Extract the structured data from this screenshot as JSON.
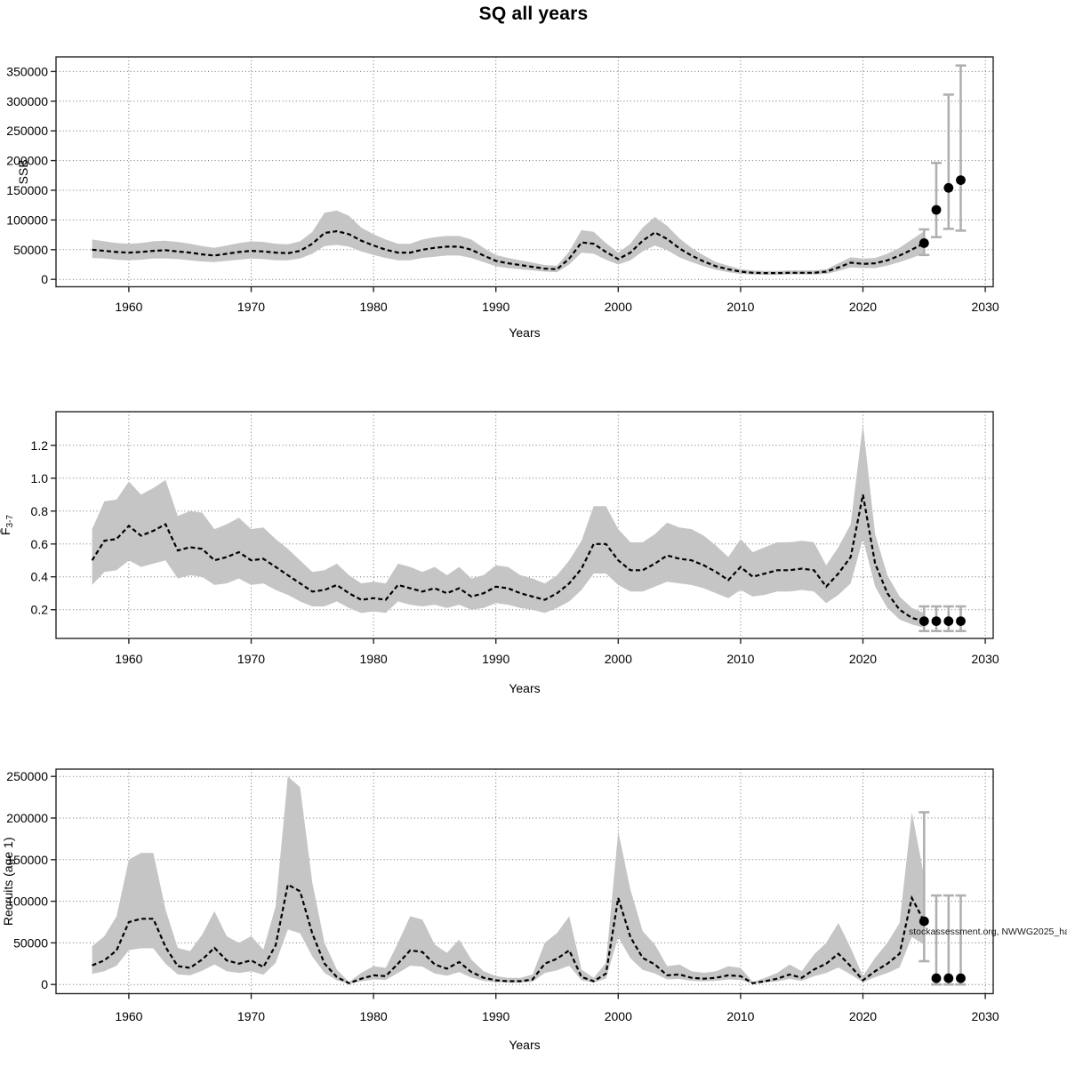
{
  "title": "SQ all years",
  "watermark": "stockassessment.org, NWWG2025_ha",
  "colors": {
    "band": "#c5c5c5",
    "line": "#000000",
    "grid": "#707070",
    "frame": "#262626",
    "error_bar": "#b0b0b0",
    "point": "#000000",
    "text": "#000000"
  },
  "chart_data": [
    {
      "type": "area",
      "name": "ssb",
      "title": "",
      "xlabel": "Years",
      "ylabel": "SSB",
      "ylabel_sub": "",
      "grid": true,
      "xlim": [
        1954.05,
        2030.65
      ],
      "ylim": [
        -12500,
        374500
      ],
      "xticks": [
        1960,
        1970,
        1980,
        1990,
        2000,
        2010,
        2020,
        2030
      ],
      "xtick_labels": [
        "1960",
        "1970",
        "1980",
        "1990",
        "2000",
        "2010",
        "2020",
        "2030"
      ],
      "yticks": [
        0,
        50000,
        100000,
        150000,
        200000,
        250000,
        300000,
        350000
      ],
      "ytick_labels": [
        "0",
        "50000",
        "100000",
        "150000",
        "200000",
        "250000",
        "300000",
        "350000"
      ],
      "x": [
        1957,
        1958,
        1959,
        1960,
        1961,
        1962,
        1963,
        1964,
        1965,
        1966,
        1967,
        1968,
        1969,
        1970,
        1971,
        1972,
        1973,
        1974,
        1975,
        1976,
        1977,
        1978,
        1979,
        1980,
        1981,
        1982,
        1983,
        1984,
        1985,
        1986,
        1987,
        1988,
        1989,
        1990,
        1991,
        1992,
        1993,
        1994,
        1995,
        1996,
        1997,
        1998,
        1999,
        2000,
        2001,
        2002,
        2003,
        2004,
        2005,
        2006,
        2007,
        2008,
        2009,
        2010,
        2011,
        2012,
        2013,
        2014,
        2015,
        2016,
        2017,
        2018,
        2019,
        2020,
        2021,
        2022,
        2023,
        2024,
        2025
      ],
      "series": [
        {
          "name": "estimate",
          "values": [
            50000,
            48000,
            46000,
            45000,
            46000,
            48000,
            49000,
            47000,
            45000,
            42000,
            40000,
            43000,
            46000,
            48000,
            47000,
            45000,
            44000,
            48000,
            60000,
            78000,
            81000,
            76000,
            65000,
            57000,
            50000,
            45000,
            45000,
            50000,
            53000,
            55000,
            55000,
            50000,
            40000,
            31000,
            27000,
            24000,
            21000,
            18000,
            17000,
            35000,
            62000,
            60000,
            46000,
            34000,
            45000,
            65000,
            79000,
            68000,
            52000,
            40000,
            30000,
            22000,
            17000,
            13000,
            11000,
            10500,
            10500,
            11000,
            11000,
            11000,
            13000,
            20000,
            28000,
            26000,
            27000,
            32000,
            40000,
            50000,
            61000
          ]
        },
        {
          "name": "lower",
          "values": [
            36000,
            35000,
            33000,
            32000,
            33000,
            35000,
            35000,
            34000,
            32000,
            30000,
            29000,
            31000,
            33000,
            35000,
            34000,
            32000,
            32000,
            35000,
            43000,
            56000,
            58000,
            55000,
            47000,
            41000,
            36000,
            32000,
            32000,
            36000,
            38000,
            40000,
            40000,
            36000,
            29000,
            22000,
            19000,
            17000,
            15000,
            13000,
            12000,
            25000,
            45000,
            43000,
            33000,
            25000,
            32000,
            47000,
            57000,
            49000,
            37000,
            29000,
            22000,
            16000,
            12000,
            9000,
            8000,
            7500,
            7500,
            8000,
            8000,
            8000,
            9000,
            14000,
            20000,
            19000,
            19000,
            23000,
            29000,
            36000,
            44000
          ]
        },
        {
          "name": "upper",
          "values": [
            67000,
            64000,
            61000,
            60000,
            61000,
            64000,
            65000,
            63000,
            60000,
            56000,
            53000,
            57000,
            61000,
            64000,
            63000,
            60000,
            59000,
            64000,
            80000,
            112000,
            116000,
            107000,
            87000,
            76000,
            67000,
            60000,
            60000,
            67000,
            71000,
            73000,
            73000,
            67000,
            53000,
            41000,
            36000,
            32000,
            28000,
            24000,
            23000,
            47000,
            83000,
            80000,
            61000,
            45000,
            60000,
            87000,
            105000,
            90000,
            69000,
            53000,
            40000,
            29000,
            23000,
            17000,
            15000,
            14000,
            14000,
            15000,
            15000,
            15000,
            17000,
            27000,
            37000,
            35000,
            36000,
            43000,
            53000,
            67000,
            81000
          ]
        }
      ],
      "forecast": {
        "x": [
          2025,
          2026,
          2027,
          2028
        ],
        "y": [
          61000,
          117000,
          154000,
          167000
        ],
        "lo": [
          41000,
          71000,
          85000,
          82000
        ],
        "hi": [
          84000,
          196000,
          311000,
          360000
        ]
      }
    },
    {
      "type": "area",
      "name": "fbar",
      "title": "",
      "xlabel": "Years",
      "ylabel": "F̄",
      "ylabel_sub": "3-7",
      "grid": true,
      "xlim": [
        1954.05,
        2030.65
      ],
      "ylim": [
        0.025,
        1.405
      ],
      "xticks": [
        1960,
        1970,
        1980,
        1990,
        2000,
        2010,
        2020,
        2030
      ],
      "xtick_labels": [
        "1960",
        "1970",
        "1980",
        "1990",
        "2000",
        "2010",
        "2020",
        "2030"
      ],
      "yticks": [
        0.2,
        0.4,
        0.6,
        0.8,
        1.0,
        1.2
      ],
      "ytick_labels": [
        "0.2",
        "0.4",
        "0.6",
        "0.8",
        "1.0",
        "1.2"
      ],
      "x": [
        1957,
        1958,
        1959,
        1960,
        1961,
        1962,
        1963,
        1964,
        1965,
        1966,
        1967,
        1968,
        1969,
        1970,
        1971,
        1972,
        1973,
        1974,
        1975,
        1976,
        1977,
        1978,
        1979,
        1980,
        1981,
        1982,
        1983,
        1984,
        1985,
        1986,
        1987,
        1988,
        1989,
        1990,
        1991,
        1992,
        1993,
        1994,
        1995,
        1996,
        1997,
        1998,
        1999,
        2000,
        2001,
        2002,
        2003,
        2004,
        2005,
        2006,
        2007,
        2008,
        2009,
        2010,
        2011,
        2012,
        2013,
        2014,
        2015,
        2016,
        2017,
        2018,
        2019,
        2020,
        2021,
        2022,
        2023,
        2024,
        2025
      ],
      "series": [
        {
          "name": "estimate",
          "values": [
            0.5,
            0.62,
            0.63,
            0.71,
            0.65,
            0.68,
            0.72,
            0.56,
            0.58,
            0.57,
            0.5,
            0.52,
            0.55,
            0.5,
            0.51,
            0.46,
            0.41,
            0.36,
            0.31,
            0.32,
            0.35,
            0.3,
            0.26,
            0.27,
            0.26,
            0.35,
            0.33,
            0.31,
            0.33,
            0.3,
            0.33,
            0.28,
            0.3,
            0.34,
            0.33,
            0.3,
            0.28,
            0.26,
            0.3,
            0.36,
            0.45,
            0.6,
            0.6,
            0.5,
            0.44,
            0.44,
            0.48,
            0.53,
            0.51,
            0.5,
            0.47,
            0.43,
            0.38,
            0.46,
            0.4,
            0.42,
            0.44,
            0.44,
            0.45,
            0.44,
            0.34,
            0.42,
            0.52,
            0.9,
            0.48,
            0.3,
            0.2,
            0.15,
            0.13
          ]
        },
        {
          "name": "lower",
          "values": [
            0.35,
            0.43,
            0.44,
            0.5,
            0.46,
            0.48,
            0.5,
            0.39,
            0.41,
            0.4,
            0.35,
            0.36,
            0.39,
            0.35,
            0.36,
            0.32,
            0.29,
            0.25,
            0.22,
            0.22,
            0.25,
            0.21,
            0.18,
            0.19,
            0.18,
            0.25,
            0.23,
            0.22,
            0.23,
            0.21,
            0.23,
            0.2,
            0.21,
            0.24,
            0.23,
            0.21,
            0.2,
            0.18,
            0.21,
            0.25,
            0.32,
            0.42,
            0.42,
            0.35,
            0.31,
            0.31,
            0.34,
            0.37,
            0.36,
            0.35,
            0.33,
            0.3,
            0.27,
            0.32,
            0.28,
            0.29,
            0.31,
            0.31,
            0.32,
            0.31,
            0.24,
            0.29,
            0.36,
            0.63,
            0.34,
            0.21,
            0.14,
            0.11,
            0.09
          ]
        },
        {
          "name": "upper",
          "values": [
            0.69,
            0.86,
            0.87,
            0.98,
            0.9,
            0.94,
            0.99,
            0.77,
            0.8,
            0.79,
            0.69,
            0.72,
            0.76,
            0.69,
            0.7,
            0.63,
            0.57,
            0.5,
            0.43,
            0.44,
            0.48,
            0.41,
            0.36,
            0.37,
            0.36,
            0.48,
            0.46,
            0.43,
            0.46,
            0.41,
            0.46,
            0.39,
            0.41,
            0.47,
            0.46,
            0.41,
            0.39,
            0.36,
            0.41,
            0.5,
            0.62,
            0.83,
            0.83,
            0.69,
            0.61,
            0.61,
            0.66,
            0.73,
            0.7,
            0.69,
            0.65,
            0.59,
            0.52,
            0.63,
            0.55,
            0.58,
            0.61,
            0.61,
            0.62,
            0.61,
            0.47,
            0.58,
            0.72,
            1.33,
            0.66,
            0.41,
            0.28,
            0.21,
            0.18
          ]
        }
      ],
      "forecast": {
        "x": [
          2025,
          2026,
          2027,
          2028
        ],
        "y": [
          0.13,
          0.13,
          0.13,
          0.13
        ],
        "lo": [
          0.07,
          0.07,
          0.07,
          0.07
        ],
        "hi": [
          0.22,
          0.22,
          0.22,
          0.22
        ]
      }
    },
    {
      "type": "area",
      "name": "recruits",
      "title": "",
      "xlabel": "Years",
      "ylabel": "Recruits (age 1)",
      "ylabel_sub": "",
      "grid": true,
      "xlim": [
        1954.05,
        2030.65
      ],
      "ylim": [
        -11000,
        258800
      ],
      "xticks": [
        1960,
        1970,
        1980,
        1990,
        2000,
        2010,
        2020,
        2030
      ],
      "xtick_labels": [
        "1960",
        "1970",
        "1980",
        "1990",
        "2000",
        "2010",
        "2020",
        "2030"
      ],
      "yticks": [
        0,
        50000,
        100000,
        150000,
        200000,
        250000
      ],
      "ytick_labels": [
        "0",
        "50000",
        "100000",
        "150000",
        "200000",
        "250000"
      ],
      "x": [
        1957,
        1958,
        1959,
        1960,
        1961,
        1962,
        1963,
        1964,
        1965,
        1966,
        1967,
        1968,
        1969,
        1970,
        1971,
        1972,
        1973,
        1974,
        1975,
        1976,
        1977,
        1978,
        1979,
        1980,
        1981,
        1982,
        1983,
        1984,
        1985,
        1986,
        1987,
        1988,
        1989,
        1990,
        1991,
        1992,
        1993,
        1994,
        1995,
        1996,
        1997,
        1998,
        1999,
        2000,
        2001,
        2002,
        2003,
        2004,
        2005,
        2006,
        2007,
        2008,
        2009,
        2010,
        2011,
        2012,
        2013,
        2014,
        2015,
        2016,
        2017,
        2018,
        2019,
        2020,
        2021,
        2022,
        2023,
        2024,
        2025
      ],
      "series": [
        {
          "name": "estimate",
          "values": [
            23000,
            29000,
            41000,
            75000,
            79000,
            79000,
            45000,
            22000,
            20000,
            30000,
            44000,
            29000,
            25000,
            29000,
            21000,
            47000,
            120000,
            112000,
            61000,
            25000,
            9000,
            1500,
            7000,
            11000,
            10000,
            25000,
            41000,
            39000,
            24000,
            19000,
            27000,
            15000,
            8000,
            5000,
            4000,
            4000,
            6000,
            25000,
            31000,
            41000,
            9000,
            4000,
            13000,
            104000,
            57000,
            32000,
            24000,
            11000,
            12000,
            8000,
            7000,
            8000,
            11000,
            10000,
            1500,
            4000,
            7000,
            12000,
            8000,
            18000,
            25000,
            37000,
            22000,
            5000,
            16000,
            25000,
            37000,
            104000,
            76000
          ]
        },
        {
          "name": "lower",
          "values": [
            12600,
            16000,
            22600,
            41300,
            43500,
            43500,
            24800,
            12100,
            11000,
            16500,
            24200,
            16000,
            13800,
            16000,
            11600,
            25900,
            66000,
            61600,
            33600,
            13800,
            5000,
            800,
            3900,
            6100,
            5500,
            13800,
            22600,
            21500,
            13200,
            10500,
            14900,
            8300,
            4400,
            2800,
            2200,
            2200,
            3300,
            13800,
            17100,
            22600,
            5000,
            2200,
            7200,
            57200,
            31400,
            17600,
            13200,
            6100,
            6600,
            4400,
            3900,
            4400,
            6100,
            5500,
            800,
            2200,
            3900,
            6600,
            4400,
            9900,
            13800,
            20400,
            12100,
            2800,
            8800,
            13800,
            20400,
            57200,
            48000
          ]
        },
        {
          "name": "upper",
          "values": [
            46000,
            58000,
            82000,
            150000,
            158000,
            158000,
            90000,
            44000,
            40000,
            60000,
            88000,
            58000,
            50000,
            58000,
            42000,
            94000,
            250000,
            237000,
            122000,
            50000,
            18000,
            3000,
            14000,
            22000,
            20000,
            50000,
            82000,
            78000,
            48000,
            38000,
            54000,
            30000,
            16000,
            10000,
            8000,
            8000,
            12000,
            50000,
            62000,
            82000,
            18000,
            8000,
            26000,
            184000,
            114000,
            64000,
            48000,
            22000,
            24000,
            16000,
            14000,
            16000,
            22000,
            20000,
            3000,
            8000,
            14000,
            24000,
            16000,
            36000,
            50000,
            74000,
            44000,
            10000,
            32000,
            50000,
            74000,
            207000,
            130000
          ]
        }
      ],
      "forecast": {
        "x": [
          2025,
          2026,
          2027,
          2028
        ],
        "y": [
          76000,
          7500,
          7500,
          7500
        ],
        "lo": [
          28000,
          0,
          0,
          0
        ],
        "hi": [
          207000,
          107000,
          107000,
          107000
        ]
      }
    }
  ]
}
